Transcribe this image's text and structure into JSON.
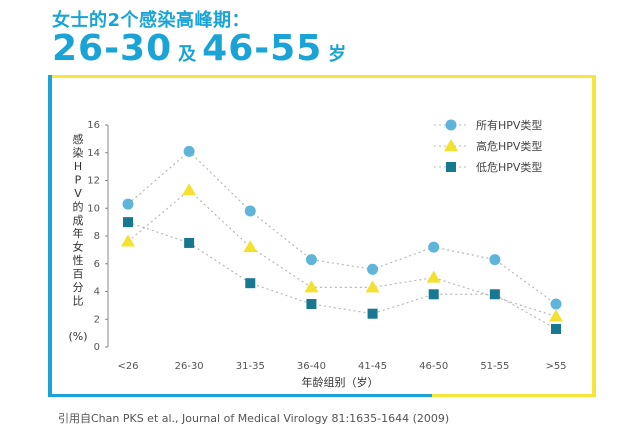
{
  "headline": "女士的2个感染高峰期：",
  "peak_line": {
    "range1": "26-30",
    "connector": "及",
    "range2": "46-55",
    "unit": "岁"
  },
  "citation": "引用自Chan PKS et al., Journal of Medical Virology 81:1635-1644 (2009)",
  "colors": {
    "all": "#5fb4d9",
    "high": "#f3e12d",
    "low": "#17788f",
    "accent_blue": "#1aa3d6",
    "accent_yellow": "#f6e63c"
  },
  "chart_data": {
    "type": "line",
    "categories": [
      "<26",
      "26-30",
      "31-35",
      "36-40",
      "41-45",
      "46-50",
      "51-55",
      ">55"
    ],
    "series": [
      {
        "name": "所有HPV类型",
        "marker": "circle",
        "values": [
          10.3,
          14.1,
          9.8,
          6.3,
          5.6,
          7.2,
          6.3,
          3.1
        ]
      },
      {
        "name": "高危HPV类型",
        "marker": "triangle",
        "values": [
          7.6,
          11.3,
          7.2,
          4.3,
          4.3,
          5.0,
          null,
          2.2
        ]
      },
      {
        "name": "低危HPV类型",
        "marker": "square",
        "values": [
          9.0,
          7.5,
          4.6,
          3.1,
          2.4,
          3.8,
          3.8,
          1.3
        ]
      }
    ],
    "xlabel": "年龄组别（岁）",
    "ylabel": "感染HPV的成年女性百分比",
    "ylabel_unit": "(%)",
    "ylim": [
      0,
      16
    ],
    "yticks": [
      0,
      2,
      4,
      6,
      8,
      10,
      12,
      14,
      16
    ],
    "grid": false,
    "legend_position": "top-right"
  }
}
